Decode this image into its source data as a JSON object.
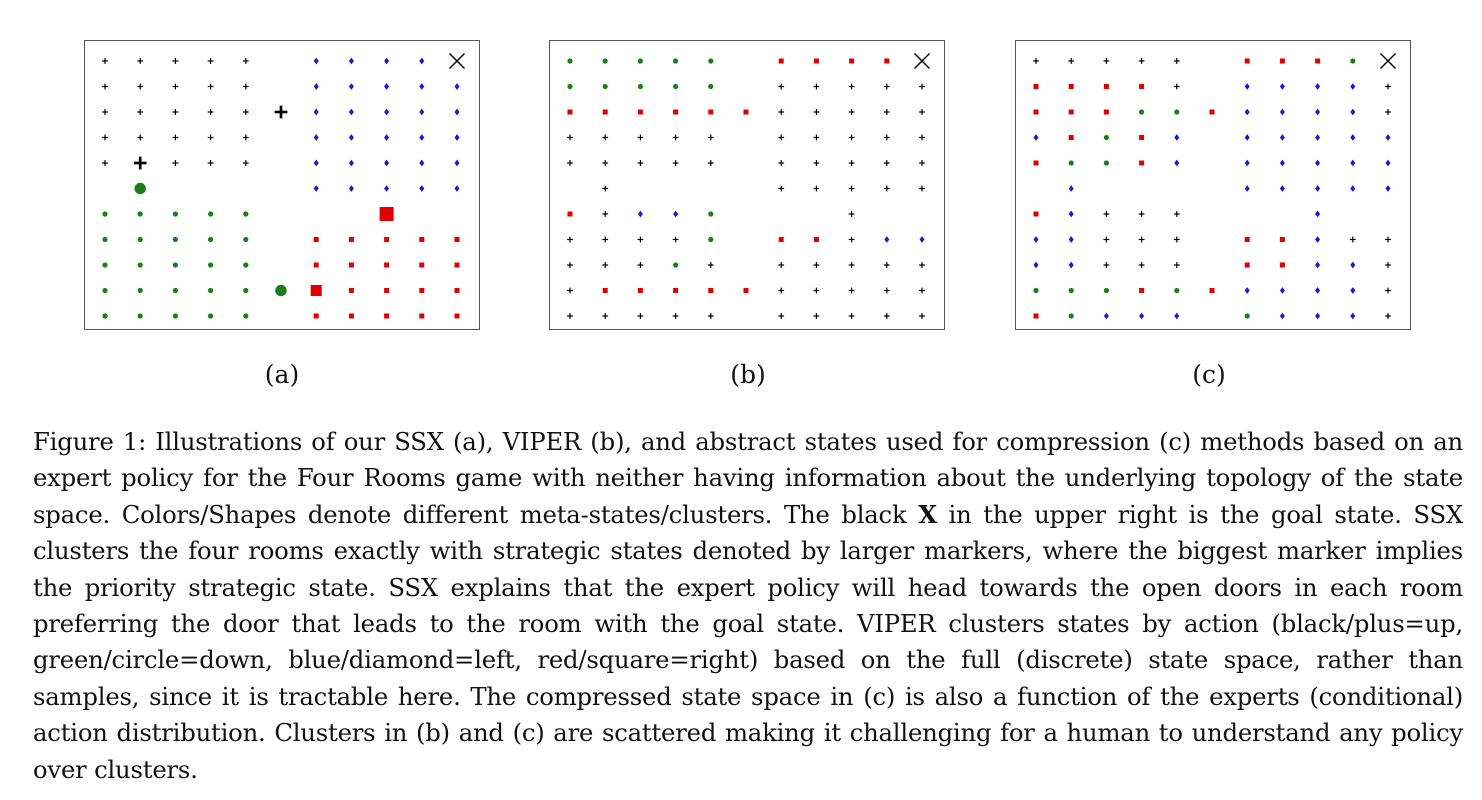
{
  "figure": {
    "subfigure_labels": [
      "(a)",
      "(b)",
      "(c)"
    ],
    "legend_colors": {
      "plus": "#000000",
      "circle": "#1a7f1a",
      "diamond": "#1a1ad6",
      "square": "#e00000",
      "goal": "#000000"
    },
    "grid": {
      "rows": 11,
      "cols": 11,
      "wall_col": 5,
      "wall_row": 5
    },
    "panels": [
      {
        "id": "a",
        "grid": [
          "+++++ DDDDX",
          "+++++ DDDDD",
          "+++++ DDDDD",
          "+++++ DDDDD",
          "+++++ DDDDD",
          "      DDDDD",
          "ooooo   S  ",
          "ooooo SSSSS",
          "ooooo SSSSS",
          "ooooo SSSSS",
          "ooooo SSSSS"
        ],
        "strategic": [
          {
            "r": 2,
            "c": 5,
            "shape": "plus",
            "size": "large"
          },
          {
            "r": 4,
            "c": 1,
            "shape": "plus",
            "size": "large"
          },
          {
            "r": 5,
            "c": 1,
            "shape": "circle",
            "size": "large"
          },
          {
            "r": 9,
            "c": 5,
            "shape": "circle",
            "size": "large"
          },
          {
            "r": 6,
            "c": 8,
            "shape": "square",
            "size": "biggest"
          },
          {
            "r": 9,
            "c": 6,
            "shape": "square",
            "size": "large"
          }
        ]
      },
      {
        "id": "b",
        "grid": [
          "ooooo SSSSX",
          "ooooo +++++",
          "SSSSSS+++++",
          "+++++ +++++",
          "+++++ +++++",
          " +    +++++",
          "S+DDo   +  ",
          "++++o SS+DD",
          "+++o+ +++++",
          "+SSSSS+++++",
          "+++++ +++++"
        ],
        "strategic": []
      },
      {
        "id": "c",
        "grid": [
          "+++++ SSSoX",
          "SSSS+ DDDD+",
          "SSSooSDDDD+",
          "DSoSD DDDDD",
          "SooSD DDDDD",
          " D    DDDDD",
          "SD+++   D  ",
          "DD+++ SSD++",
          "DD+++ SSDD+",
          "oooSoSDDDD+",
          "SoDDD oDDD+"
        ],
        "strategic": []
      }
    ]
  },
  "caption": {
    "part1": "Figure 1: Illustrations of our SSX (a), VIPER (b), and abstract states used for compression (c) methods based on an expert policy for the Four Rooms game with neither having information about the underlying topology of the state space. Colors/Shapes denote different meta-states/clusters. The black ",
    "bold": "X",
    "part2": " in the upper right is the goal state.  SSX clusters the four rooms exactly with strategic states denoted by larger markers, where the biggest marker implies the priority strategic state. SSX explains that the expert policy will head towards the open doors in each room preferring the door that leads to the room with the goal state. VIPER clusters states by action (black/plus=up, green/circle=down, blue/diamond=left, red/square=right) based on the full (discrete) state space, rather than samples, since it is tractable here. The compressed state space in (c)  is also a function of the experts (conditional) action distribution. Clusters in (b) and (c) are scattered making it challenging for a human to understand any policy over clusters."
  }
}
